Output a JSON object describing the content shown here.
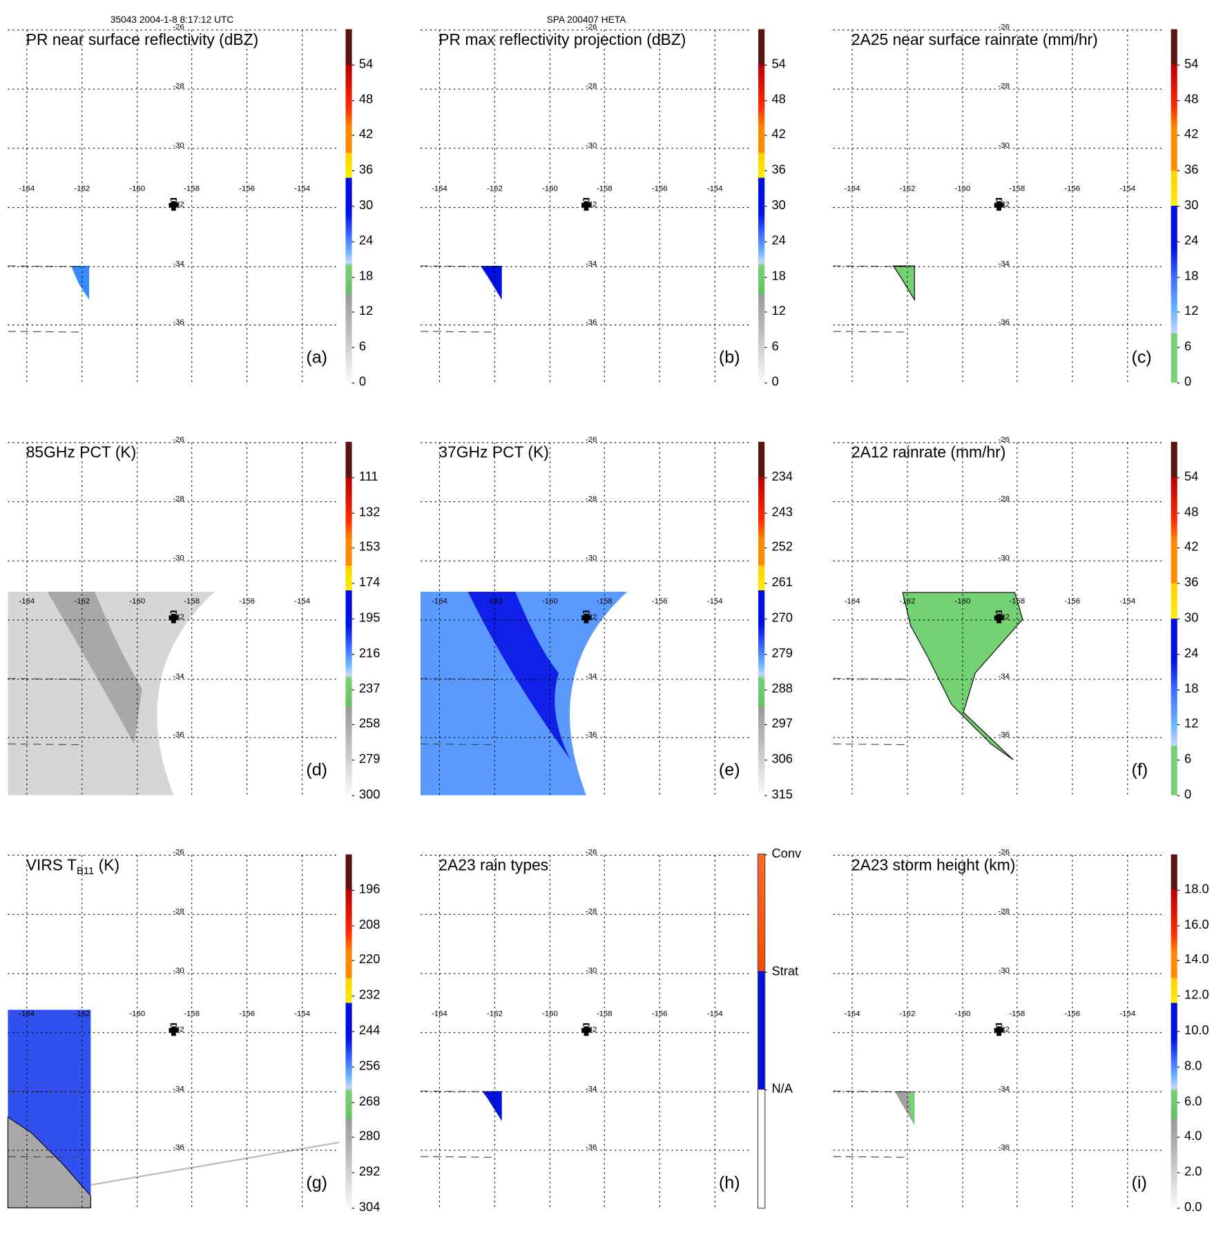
{
  "header": {
    "left": "35043 2004-1-8 8:17:12 UTC",
    "center": "SPA 200407 HETA"
  },
  "axes": {
    "lat_labels": [
      "-26",
      "-28",
      "-30",
      "-32",
      "-34",
      "-36"
    ],
    "lon_labels": [
      "-164",
      "-162",
      "-160",
      "-158",
      "-156",
      "-154"
    ]
  },
  "chart_data": [
    {
      "type": "heatmap",
      "id": "a",
      "title": "PR near surface reflectivity (dBZ)",
      "letter": "(a)",
      "colorbar_ticks": [
        "54",
        "48",
        "42",
        "36",
        "30",
        "24",
        "18",
        "12",
        "6",
        "0"
      ],
      "colorbar": "std",
      "data_region": "small swath near -162,-34 to -35; values ~18-30 dBZ"
    },
    {
      "type": "heatmap",
      "id": "b",
      "title": "PR max reflectivity projection (dBZ)",
      "letter": "(b)",
      "colorbar_ticks": [
        "54",
        "48",
        "42",
        "36",
        "30",
        "24",
        "18",
        "12",
        "6",
        "0"
      ],
      "colorbar": "std",
      "data_region": "small swath near -162,-34 to -35; values ~30 dBZ"
    },
    {
      "type": "heatmap",
      "id": "c",
      "title": "2A25 near surface rainrate (mm/hr)",
      "letter": "(c)",
      "colorbar_ticks": [
        "54",
        "48",
        "42",
        "36",
        "30",
        "24",
        "18",
        "12",
        "6",
        "0"
      ],
      "colorbar": "rain",
      "data_region": "small swath near -162,-34 to -35; values ~0-6 mm/hr"
    },
    {
      "type": "heatmap",
      "id": "d",
      "title": "85GHz PCT (K)",
      "letter": "(d)",
      "colorbar_ticks": [
        "111",
        "132",
        "153",
        "174",
        "195",
        "216",
        "237",
        "258",
        "279",
        "300"
      ],
      "colorbar": "std",
      "data_region": "TMI swath west of -158; values ~258-300 K"
    },
    {
      "type": "heatmap",
      "id": "e",
      "title": "37GHz PCT (K)",
      "letter": "(e)",
      "colorbar_ticks": [
        "234",
        "243",
        "252",
        "261",
        "270",
        "279",
        "288",
        "297",
        "306",
        "315"
      ],
      "colorbar": "std",
      "data_region": "TMI swath west of -158; values ~265-285 K"
    },
    {
      "type": "heatmap",
      "id": "f",
      "title": "2A12 rainrate (mm/hr)",
      "letter": "(f)",
      "colorbar_ticks": [
        "54",
        "48",
        "42",
        "36",
        "30",
        "24",
        "18",
        "12",
        "6",
        "0"
      ],
      "colorbar": "rain",
      "data_region": "TMI swath; values ~0-6 mm/hr"
    },
    {
      "type": "heatmap",
      "id": "g",
      "title": "VIRS T",
      "title_sub": "B11",
      "title_suffix": " (K)",
      "letter": "(g)",
      "colorbar_ticks": [
        "196",
        "208",
        "220",
        "232",
        "244",
        "256",
        "268",
        "280",
        "292",
        "304"
      ],
      "colorbar": "std",
      "data_region": "VIRS strip -164 to -162; values ~244-292 K"
    },
    {
      "type": "heatmap",
      "id": "h",
      "title": "2A23 rain types",
      "letter": "(h)",
      "colorbar_ticks": [
        "Conv",
        "Strat",
        "N/A"
      ],
      "colorbar": "types",
      "data_region": "small swath near -162,-34; stratiform"
    },
    {
      "type": "heatmap",
      "id": "i",
      "title": "2A23 storm height (km)",
      "letter": "(i)",
      "colorbar_ticks": [
        "18.0",
        "16.0",
        "14.0",
        "12.0",
        "10.0",
        "8.0",
        "6.0",
        "4.0",
        "2.0",
        "0.0"
      ],
      "colorbar": "std",
      "data_region": "small swath near -162,-34; values ~4-6 km"
    }
  ],
  "colors": {
    "brown": "#5a1510",
    "darkred": "#b80000",
    "red": "#ff2a00",
    "orange": "#ff8a00",
    "yellow": "#ffee00",
    "blue": "#0010e0",
    "midblue": "#3a6aff",
    "lightblue": "#6ab8ff",
    "pale": "#c8d4ff",
    "green": "#74d274",
    "gray": "#9a9a9a",
    "lightgray": "#e0e0e0"
  }
}
